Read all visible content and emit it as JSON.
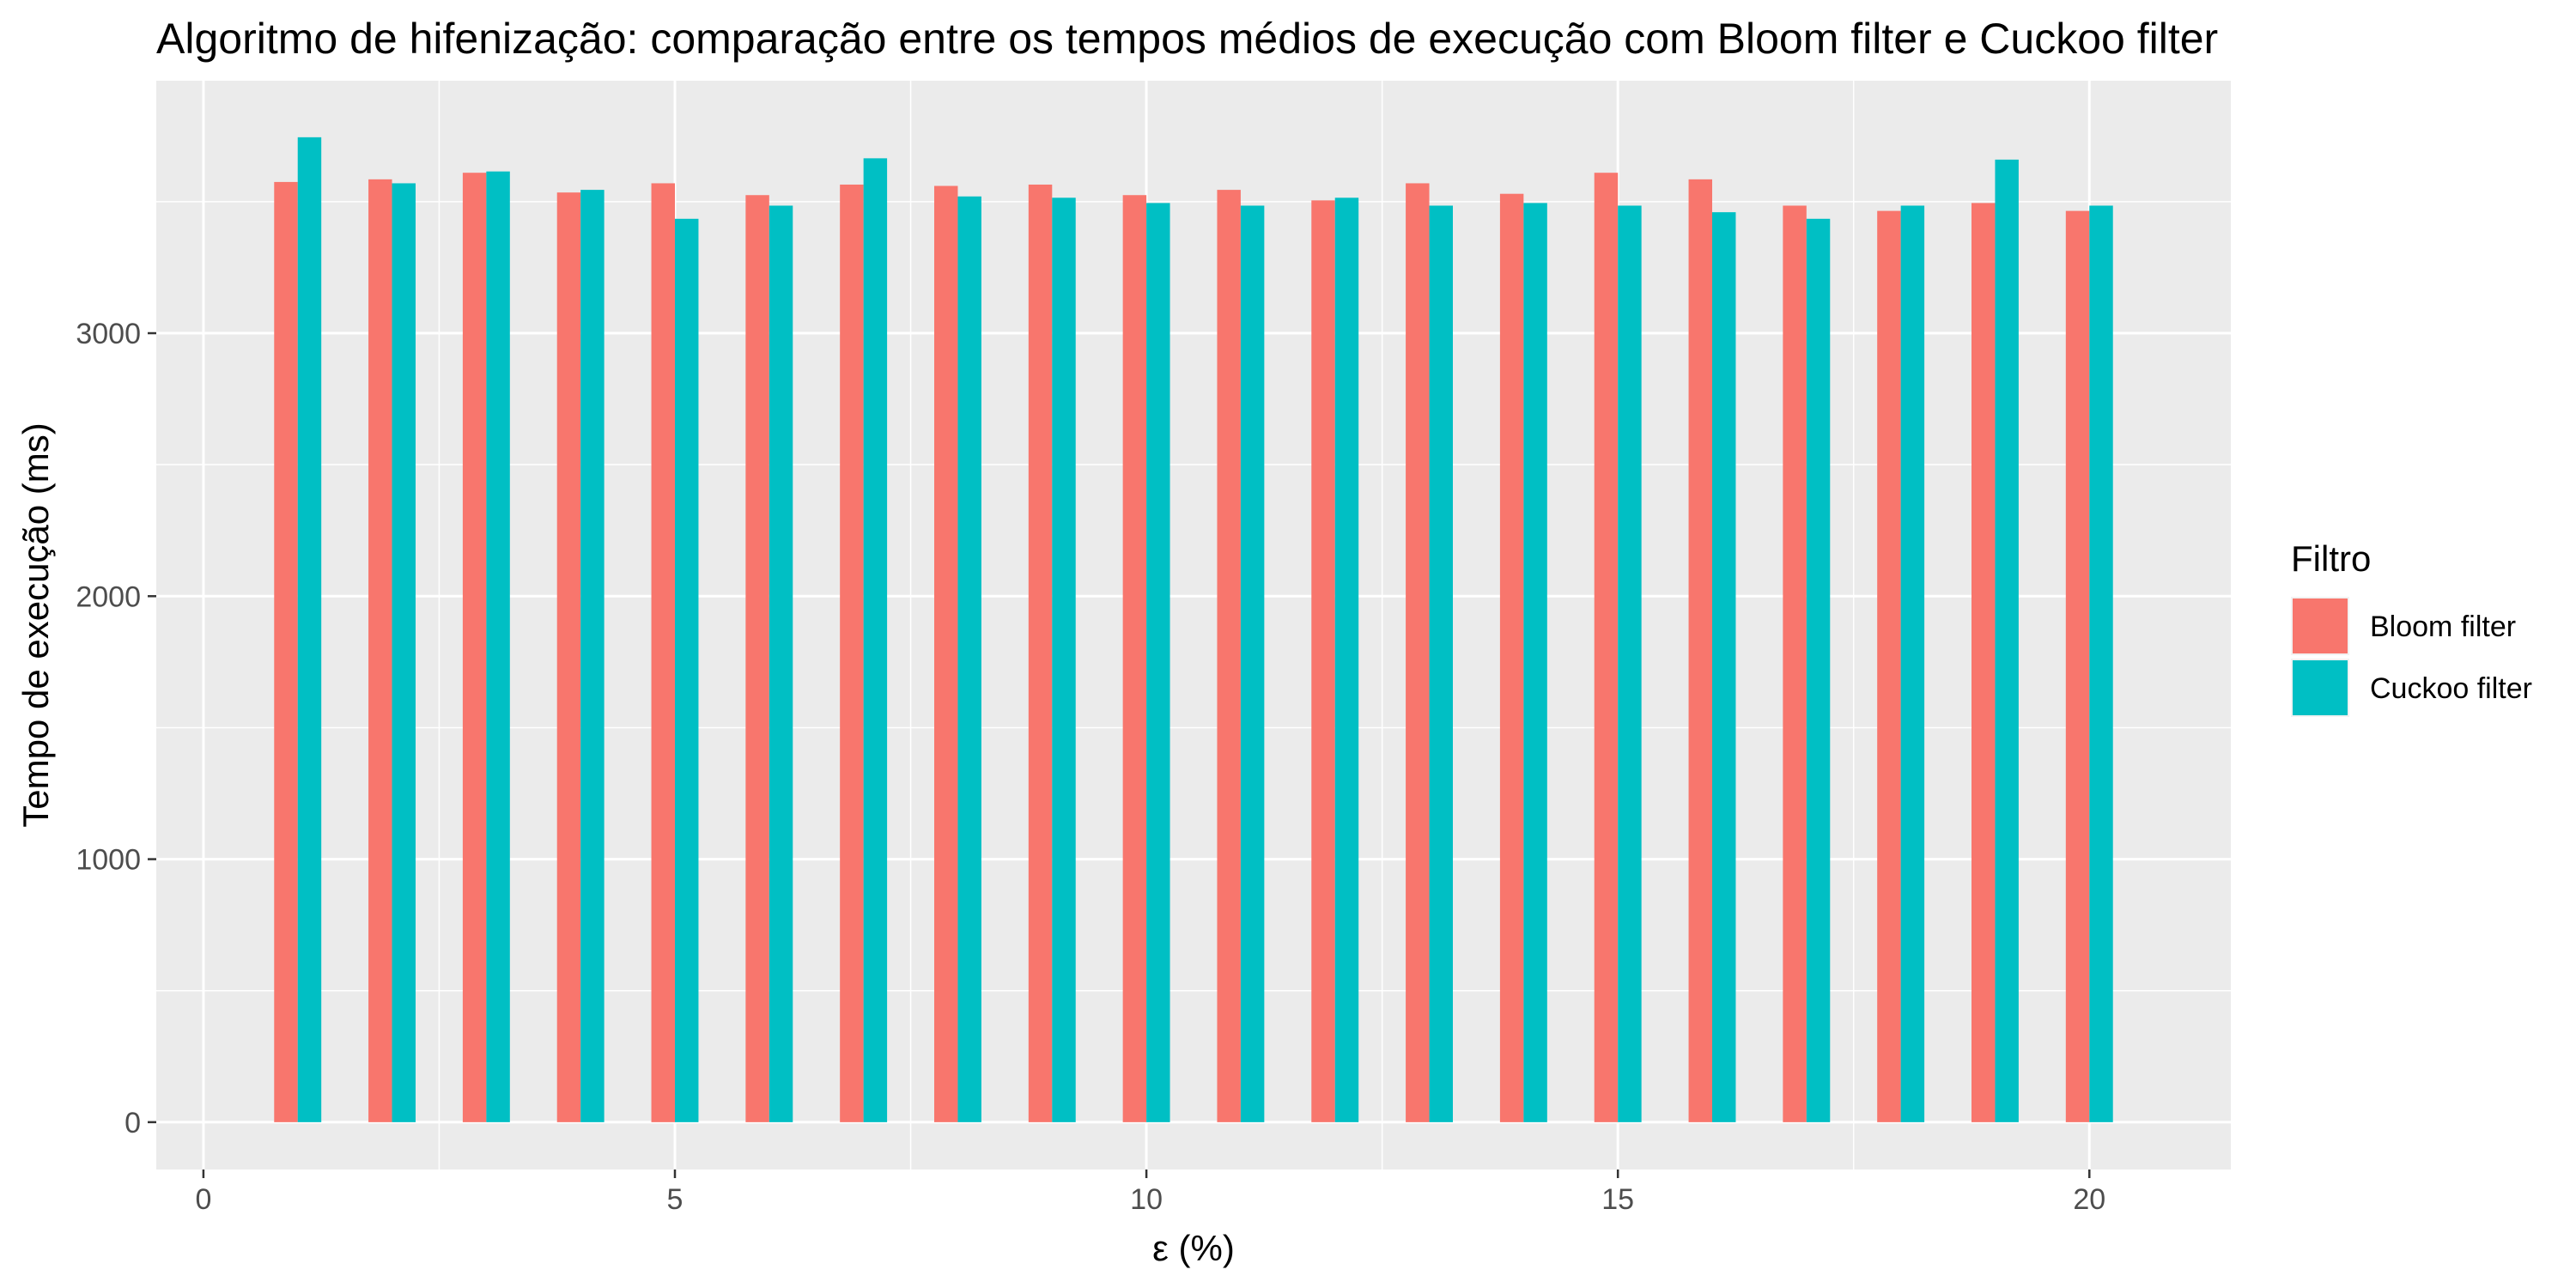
{
  "chart_data": {
    "type": "bar",
    "title": "Algoritmo de hifenização: comparação entre os tempos médios de execução com Bloom filter e Cuckoo filter",
    "xlabel": "ε (%)",
    "ylabel": "Tempo de execução (ms)",
    "x": [
      1,
      2,
      3,
      4,
      5,
      6,
      7,
      8,
      9,
      10,
      11,
      12,
      13,
      14,
      15,
      16,
      17,
      18,
      19,
      20
    ],
    "xlim": [
      -0.5,
      21.5
    ],
    "ylim": [
      -180,
      3960
    ],
    "xticks": [
      0,
      5,
      10,
      15,
      20
    ],
    "yticks": [
      0,
      1000,
      2000,
      3000
    ],
    "grid": true,
    "legend_position": "right",
    "legend_title": "Filtro",
    "series": [
      {
        "name": "Bloom filter",
        "color": "#F8766D",
        "values": [
          3575,
          3585,
          3610,
          3535,
          3570,
          3525,
          3565,
          3560,
          3565,
          3525,
          3545,
          3505,
          3570,
          3530,
          3610,
          3585,
          3485,
          3465,
          3495,
          3465
        ]
      },
      {
        "name": "Cuckoo filter",
        "color": "#00BFC4",
        "values": [
          3745,
          3570,
          3615,
          3545,
          3435,
          3485,
          3665,
          3520,
          3515,
          3495,
          3485,
          3515,
          3485,
          3495,
          3485,
          3460,
          3435,
          3485,
          3660,
          3485
        ]
      }
    ]
  },
  "colors": {
    "panel_background": "#EBEBEB",
    "gridline": "#FFFFFF",
    "tick_label": "#4D4D4D"
  }
}
